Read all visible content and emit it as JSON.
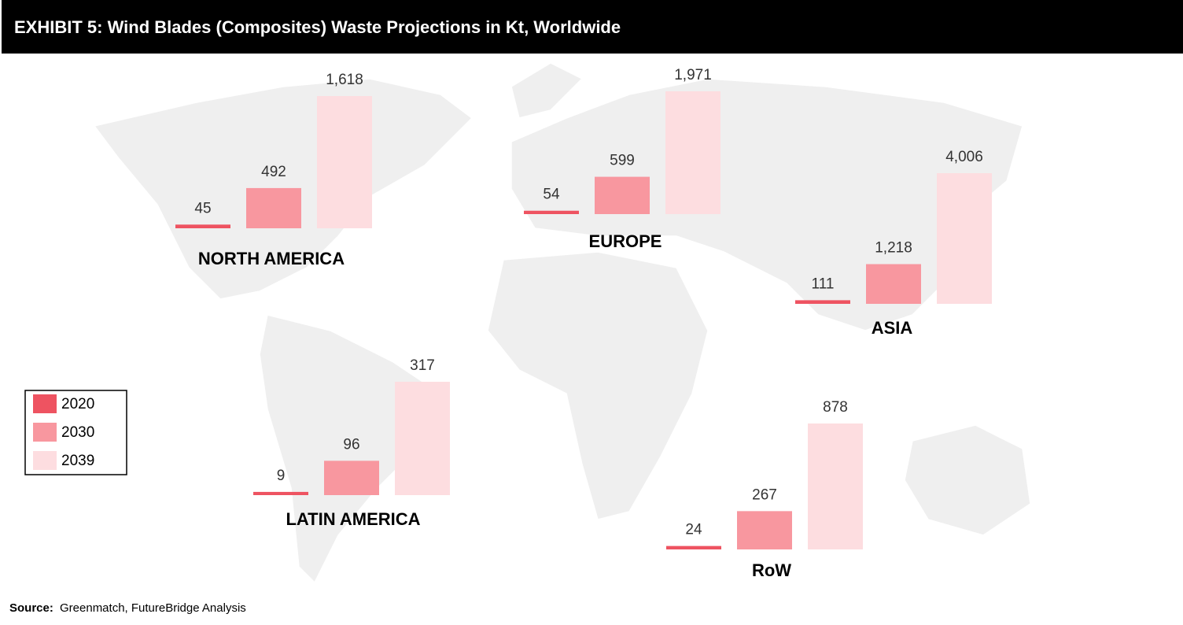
{
  "header": {
    "title": "EXHIBIT 5: Wind Blades (Composites) Waste Projections in Kt, Worldwide"
  },
  "chart_data": {
    "type": "bar",
    "categories": [
      "NORTH AMERICA",
      "EUROPE",
      "ASIA",
      "LATIN AMERICA",
      "RoW"
    ],
    "series": [
      {
        "name": "2020",
        "color": "#ee5361",
        "values": [
          45,
          54,
          111,
          9,
          24
        ]
      },
      {
        "name": "2030",
        "color": "#f8979f",
        "values": [
          492,
          599,
          1218,
          96,
          267
        ],
        "value_labels": [
          "492",
          "599",
          "1,218",
          "96",
          "267"
        ]
      },
      {
        "name": "2039",
        "color": "#fddde0",
        "values": [
          1618,
          1971,
          4006,
          317,
          878
        ],
        "value_labels": [
          "1,618",
          "1,971",
          "4,006",
          "317",
          "878"
        ]
      }
    ]
  },
  "source": {
    "label": "Source:",
    "text": "Greenmatch, FutureBridge Analysis"
  }
}
